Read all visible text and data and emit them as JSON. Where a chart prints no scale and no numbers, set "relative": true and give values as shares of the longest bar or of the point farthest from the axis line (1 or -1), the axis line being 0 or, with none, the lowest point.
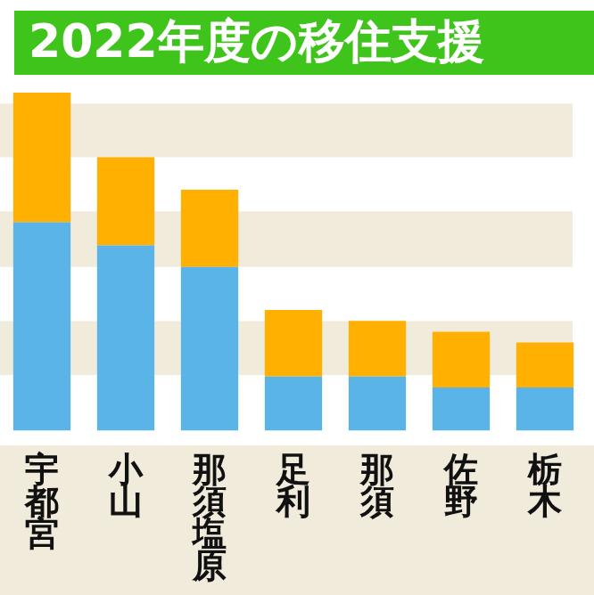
{
  "chart_data": {
    "type": "bar",
    "title": "2022年度の移住支援",
    "relative": true,
    "stacked": true,
    "legend": false,
    "grid": false,
    "bands": [
      {
        "axis": "y",
        "from": 0.809,
        "to": 0.968,
        "color": "#f1ebdc"
      },
      {
        "axis": "y",
        "from": 0.484,
        "to": 0.649,
        "color": "#f1ebdc"
      },
      {
        "axis": "y",
        "from": 0.165,
        "to": 0.324,
        "color": "#f1ebdc"
      }
    ],
    "categories": [
      "宇都宮",
      "小山",
      "那須塩原",
      "足利",
      "那須",
      "佐野",
      "栃木"
    ],
    "series": [
      {
        "color": "#5ab4e8",
        "values": [
          0.617,
          0.548,
          0.484,
          0.16,
          0.16,
          0.128,
          0.128
        ]
      },
      {
        "color": "#ffb000",
        "values": [
          0.383,
          0.261,
          0.229,
          0.197,
          0.165,
          0.165,
          0.133
        ]
      }
    ]
  }
}
